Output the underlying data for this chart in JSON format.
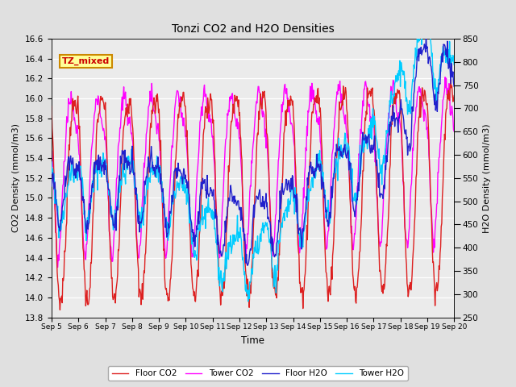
{
  "title": "Tonzi CO2 and H2O Densities",
  "xlabel": "Time",
  "ylabel_left": "CO2 Density (mmol/m3)",
  "ylabel_right": "H2O Density (mmol/m3)",
  "annotation_text": "TZ_mixed",
  "annotation_color": "#cc0000",
  "annotation_bg": "#ffff99",
  "annotation_border": "#cc8800",
  "ylim_left": [
    13.8,
    16.6
  ],
  "ylim_right": [
    250,
    850
  ],
  "yticks_left": [
    13.8,
    14.0,
    14.2,
    14.4,
    14.6,
    14.8,
    15.0,
    15.2,
    15.4,
    15.6,
    15.8,
    16.0,
    16.2,
    16.4,
    16.6
  ],
  "yticks_right": [
    250,
    300,
    350,
    400,
    450,
    500,
    550,
    600,
    650,
    700,
    750,
    800,
    850
  ],
  "xtick_labels": [
    "Sep 5",
    "Sep 6",
    "Sep 7",
    "Sep 8",
    "Sep 9",
    "Sep 10",
    "Sep 11",
    "Sep 12",
    "Sep 13",
    "Sep 14",
    "Sep 15",
    "Sep 16",
    "Sep 17",
    "Sep 18",
    "Sep 19",
    "Sep 20"
  ],
  "colors": {
    "floor_co2": "#dd2020",
    "tower_co2": "#ff00ff",
    "floor_h2o": "#2020cc",
    "tower_h2o": "#00ccff"
  },
  "legend_labels": [
    "Floor CO2",
    "Tower CO2",
    "Floor H2O",
    "Tower H2O"
  ],
  "bg_color": "#e0e0e0",
  "plot_bg": "#ebebeb",
  "grid_color": "#ffffff",
  "linewidth": 1.0
}
